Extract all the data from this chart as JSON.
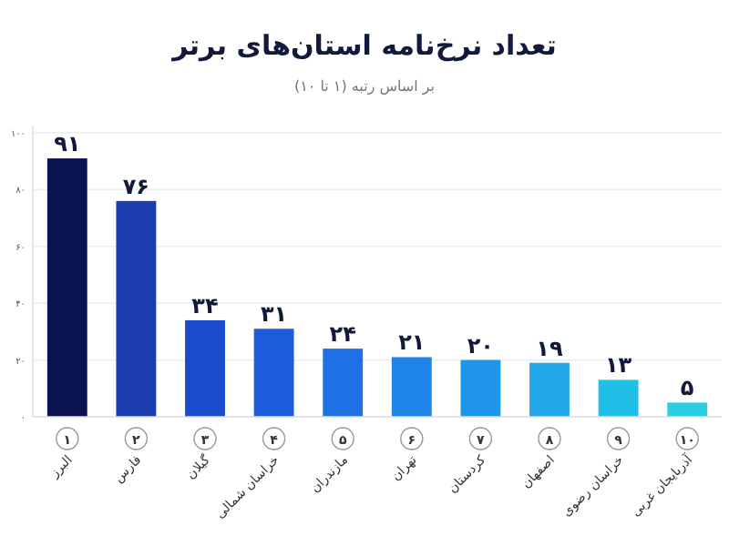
{
  "chart_data": {
    "type": "bar",
    "title": "تعداد نرخ‌نامه استان‌های برتر",
    "subtitle": "بر اساس رتبه (۱ تا ۱۰)",
    "categories": [
      "البرز",
      "فارس",
      "گیلان",
      "خراسان شمالی",
      "مازندران",
      "تهران",
      "کردستان",
      "اصفهان",
      "خراسان رضوی",
      "آذربایجان غربی"
    ],
    "values": [
      91,
      76,
      34,
      31,
      24,
      21,
      20,
      19,
      13,
      5
    ],
    "value_labels": [
      "۹۱",
      "۷۶",
      "۳۴",
      "۳۱",
      "۲۴",
      "۲۱",
      "۲۰",
      "۱۹",
      "۱۳",
      "۵"
    ],
    "colors": [
      "#0b1250",
      "#1a3cae",
      "#1a4bcc",
      "#1c5cdc",
      "#1e70e4",
      "#1f84e8",
      "#1f96ea",
      "#20a8ea",
      "#20bfe8",
      "#2ccde0"
    ],
    "annotations": [
      "۱",
      "۲",
      "۳",
      "۴",
      "۵",
      "۶",
      "۷",
      "۸",
      "۹",
      "۱۰"
    ],
    "ylim": [
      0,
      100
    ],
    "yticks": [
      {
        "value": 0,
        "label": "۰"
      },
      {
        "value": 20,
        "label": "۲۰"
      },
      {
        "value": 40,
        "label": "۴۰"
      },
      {
        "value": 60,
        "label": "۶۰"
      },
      {
        "value": 80,
        "label": "۸۰"
      },
      {
        "value": 100,
        "label": "۱۰۰"
      }
    ],
    "grid": "y"
  }
}
